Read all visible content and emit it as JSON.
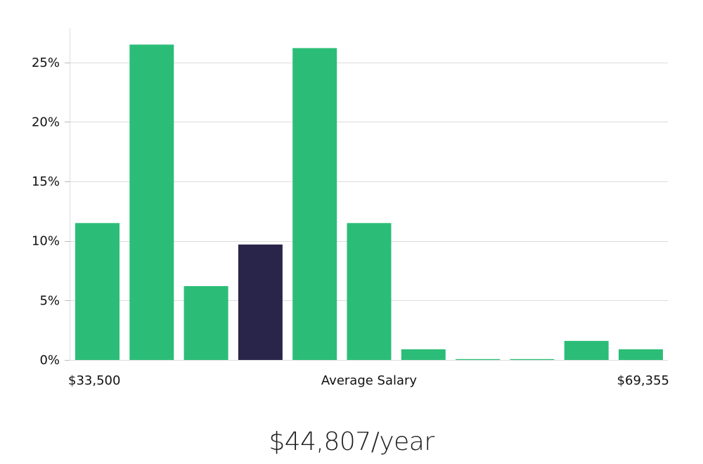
{
  "chart_data": {
    "type": "bar",
    "title": "",
    "xlabel": "Average Salary",
    "x_min_label": "$33,500",
    "x_max_label": "$69,355",
    "ylabel": "",
    "ylim": [
      0,
      28
    ],
    "yticks": [
      0,
      5,
      10,
      15,
      20,
      25
    ],
    "ytick_labels": [
      "0%",
      "5%",
      "10%",
      "15%",
      "20%",
      "25%"
    ],
    "values": [
      11.5,
      26.5,
      6.2,
      9.7,
      26.2,
      11.5,
      0.9,
      0.05,
      0.05,
      1.6,
      0.9
    ],
    "highlight_index": 3,
    "bar_color": "#2bbd77",
    "highlight_color": "#29254a",
    "grid": true
  },
  "salary_label": "$44,807/year"
}
